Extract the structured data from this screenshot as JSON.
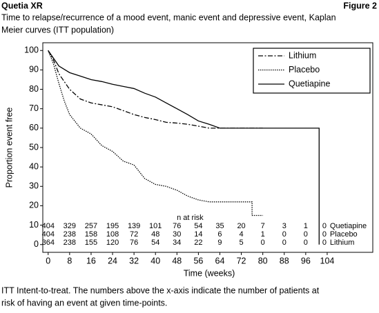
{
  "header": {
    "title": "Quetia XR",
    "figure": "Figure 2"
  },
  "chart_data": {
    "type": "line",
    "title": [
      "Time to relapse/recurrence of a mood event, manic event and depressive event, Kaplan",
      "Meier curves (ITT population)"
    ],
    "x_label": "Time (weeks)",
    "y_label": "Proportion event free",
    "xlim": [
      -2,
      121
    ],
    "ylim": [
      -4,
      104
    ],
    "xticks": [
      0,
      8,
      16,
      24,
      32,
      40,
      48,
      56,
      64,
      72,
      80,
      88,
      96,
      104
    ],
    "yticks": [
      0,
      10,
      20,
      30,
      40,
      50,
      60,
      70,
      80,
      90,
      100
    ],
    "legend": "upper right",
    "series": [
      {
        "name": "Lithium",
        "color": "#000000",
        "style": "dashdot",
        "x": [
          0,
          2,
          4,
          6,
          8,
          12,
          16,
          20,
          24,
          28,
          32,
          36,
          40,
          44,
          48,
          52,
          56,
          60,
          64,
          80
        ],
        "values": [
          100,
          95,
          88,
          84,
          80,
          75,
          73,
          72,
          71,
          69,
          67,
          65.5,
          64.4,
          63,
          62.6,
          62,
          61,
          60,
          60,
          60
        ]
      },
      {
        "name": "Placebo",
        "color": "#000000",
        "style": "dotted",
        "x": [
          0,
          2,
          4,
          6,
          8,
          12,
          16,
          20,
          24,
          28,
          32,
          36,
          40,
          44,
          48,
          52,
          56,
          60,
          76,
          76,
          80
        ],
        "values": [
          100,
          93,
          83,
          74,
          67,
          60,
          57,
          51,
          48,
          43,
          41,
          34,
          31,
          30,
          28,
          25,
          23,
          22,
          22,
          15,
          15
        ]
      },
      {
        "name": "Quetiapine",
        "color": "#000000",
        "style": "solid",
        "x": [
          0,
          2,
          4,
          8,
          12,
          16,
          20,
          24,
          28,
          32,
          36,
          40,
          44,
          48,
          52,
          56,
          60,
          64,
          101,
          101
        ],
        "values": [
          100,
          96,
          92,
          88.6,
          86.8,
          85,
          84,
          82.6,
          81.5,
          80.4,
          78,
          76,
          73,
          70,
          67,
          63.7,
          62,
          60,
          60,
          0
        ]
      }
    ],
    "risk_table": {
      "title": "n at risk",
      "rows": [
        {
          "name": "Quetiapine",
          "values": [
            404,
            329,
            257,
            195,
            139,
            101,
            76,
            54,
            35,
            20,
            7,
            3,
            1,
            0
          ]
        },
        {
          "name": "Placebo",
          "values": [
            404,
            238,
            158,
            108,
            72,
            48,
            30,
            14,
            6,
            4,
            1,
            0,
            0,
            0
          ]
        },
        {
          "name": "Lithium",
          "values": [
            364,
            238,
            155,
            120,
            76,
            54,
            34,
            22,
            9,
            5,
            0,
            0,
            0,
            0
          ]
        }
      ]
    }
  },
  "footnote": [
    "ITT Intent-to-treat. The numbers above the x-axis indicate the number of patients at",
    "risk of having an event at given time-points."
  ]
}
